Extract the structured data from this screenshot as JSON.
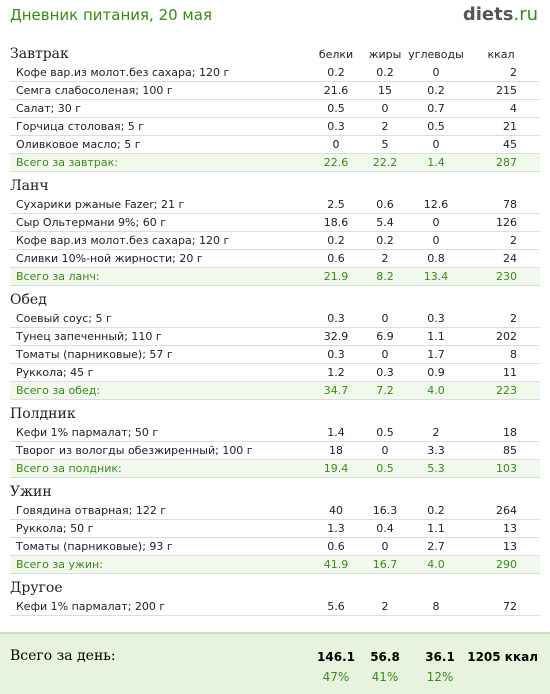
{
  "header": {
    "title": "Дневник питания, 20 мая",
    "logo_main": "diets",
    "logo_tld": ".ru"
  },
  "columns": [
    "белки",
    "жиры",
    "углеводы",
    "ккал"
  ],
  "meals": [
    {
      "name": "Завтрак",
      "items": [
        [
          "Кофе вар.из молот.без сахара; 120 г",
          "0.2",
          "0.2",
          "0",
          "2"
        ],
        [
          "Семга слабосоленая; 100 г",
          "21.6",
          "15",
          "0.2",
          "215"
        ],
        [
          "Салат; 30 г",
          "0.5",
          "0",
          "0.7",
          "4"
        ],
        [
          "Горчица столовая; 5 г",
          "0.3",
          "2",
          "0.5",
          "21"
        ],
        [
          "Оливковое масло; 5 г",
          "0",
          "5",
          "0",
          "45"
        ]
      ],
      "total": [
        "Всего за завтрак:",
        "22.6",
        "22.2",
        "1.4",
        "287"
      ]
    },
    {
      "name": "Ланч",
      "items": [
        [
          "Сухарики ржаные Fazer; 21 г",
          "2.5",
          "0.6",
          "12.6",
          "78"
        ],
        [
          "Сыр Ольтермани 9%; 60 г",
          "18.6",
          "5.4",
          "0",
          "126"
        ],
        [
          "Кофе вар.из молот.без сахара; 120 г",
          "0.2",
          "0.2",
          "0",
          "2"
        ],
        [
          "Сливки 10%-ной жирности; 20 г",
          "0.6",
          "2",
          "0.8",
          "24"
        ]
      ],
      "total": [
        "Всего за ланч:",
        "21.9",
        "8.2",
        "13.4",
        "230"
      ]
    },
    {
      "name": "Обед",
      "items": [
        [
          "Соевый соус; 5 г",
          "0.3",
          "0",
          "0.3",
          "2"
        ],
        [
          "Тунец запеченный; 110 г",
          "32.9",
          "6.9",
          "1.1",
          "202"
        ],
        [
          "Томаты (парниковые); 57 г",
          "0.3",
          "0",
          "1.7",
          "8"
        ],
        [
          "Руккола; 45 г",
          "1.2",
          "0.3",
          "0.9",
          "11"
        ]
      ],
      "total": [
        "Всего за обед:",
        "34.7",
        "7.2",
        "4.0",
        "223"
      ]
    },
    {
      "name": "Полдник",
      "items": [
        [
          "Кефи 1% пармалат; 50 г",
          "1.4",
          "0.5",
          "2",
          "18"
        ],
        [
          "Творог из вологды обезжиренный; 100 г",
          "18",
          "0",
          "3.3",
          "85"
        ]
      ],
      "total": [
        "Всего за полдник:",
        "19.4",
        "0.5",
        "5.3",
        "103"
      ]
    },
    {
      "name": "Ужин",
      "items": [
        [
          "Говядина отварная; 122 г",
          "40",
          "16.3",
          "0.2",
          "264"
        ],
        [
          "Руккола; 50 г",
          "1.3",
          "0.4",
          "1.1",
          "13"
        ],
        [
          "Томаты (парниковые); 93 г",
          "0.6",
          "0",
          "2.7",
          "13"
        ]
      ],
      "total": [
        "Всего за ужин:",
        "41.9",
        "16.7",
        "4.0",
        "290"
      ]
    },
    {
      "name": "Другое",
      "items": [
        [
          "Кефи 1% пармалат; 200 г",
          "5.6",
          "2",
          "8",
          "72"
        ]
      ]
    }
  ],
  "day_total": {
    "label": "Всего за день:",
    "values": [
      "146.1",
      "56.8",
      "36.1",
      "1205 ккал"
    ],
    "percents": [
      "47%",
      "41%",
      "12%"
    ]
  }
}
